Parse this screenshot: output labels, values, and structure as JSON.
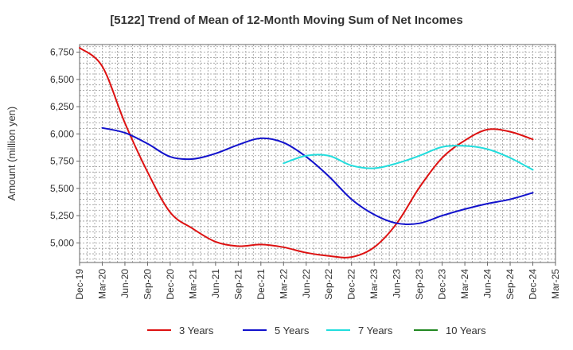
{
  "chart_data": {
    "type": "line",
    "title": "[5122]  Trend of Mean of 12-Month Moving Sum of Net Incomes",
    "xlabel": "",
    "ylabel": "Amount (million yen)",
    "x_start": "2019-12",
    "x_end": "2025-03",
    "x_ticks": [
      "Dec-19",
      "Mar-20",
      "Jun-20",
      "Sep-20",
      "Dec-20",
      "Mar-21",
      "Jun-21",
      "Sep-21",
      "Dec-21",
      "Mar-22",
      "Jun-22",
      "Sep-22",
      "Dec-22",
      "Mar-23",
      "Jun-23",
      "Sep-23",
      "Dec-23",
      "Mar-24",
      "Jun-24",
      "Sep-24",
      "Dec-24",
      "Mar-25"
    ],
    "ylim": [
      4820,
      6820
    ],
    "y_ticks": [
      5000,
      5250,
      5500,
      5750,
      6000,
      6250,
      6500,
      6750
    ],
    "y_tick_labels": [
      "5,000",
      "5,250",
      "5,500",
      "5,750",
      "6,000",
      "6,250",
      "6,500",
      "6,750"
    ],
    "grid": true,
    "legend_position": "bottom",
    "series": [
      {
        "name": "3 Years",
        "color": "#dd1111",
        "points": [
          [
            "2019-12",
            6790
          ],
          [
            "2020-03",
            6620
          ],
          [
            "2020-06",
            6100
          ],
          [
            "2020-09",
            5650
          ],
          [
            "2020-12",
            5280
          ],
          [
            "2021-03",
            5130
          ],
          [
            "2021-06",
            5010
          ],
          [
            "2021-09",
            4970
          ],
          [
            "2021-12",
            4985
          ],
          [
            "2022-03",
            4960
          ],
          [
            "2022-06",
            4910
          ],
          [
            "2022-09",
            4880
          ],
          [
            "2022-12",
            4870
          ],
          [
            "2023-03",
            4960
          ],
          [
            "2023-06",
            5180
          ],
          [
            "2023-09",
            5510
          ],
          [
            "2023-12",
            5780
          ],
          [
            "2024-03",
            5940
          ],
          [
            "2024-06",
            6040
          ],
          [
            "2024-09",
            6020
          ],
          [
            "2024-12",
            5950
          ]
        ]
      },
      {
        "name": "5 Years",
        "color": "#1111cc",
        "points": [
          [
            "2020-03",
            6055
          ],
          [
            "2020-06",
            6010
          ],
          [
            "2020-09",
            5910
          ],
          [
            "2020-12",
            5790
          ],
          [
            "2021-03",
            5770
          ],
          [
            "2021-06",
            5820
          ],
          [
            "2021-09",
            5900
          ],
          [
            "2021-12",
            5960
          ],
          [
            "2022-03",
            5920
          ],
          [
            "2022-06",
            5790
          ],
          [
            "2022-09",
            5610
          ],
          [
            "2022-12",
            5400
          ],
          [
            "2023-03",
            5260
          ],
          [
            "2023-06",
            5180
          ],
          [
            "2023-09",
            5180
          ],
          [
            "2023-12",
            5250
          ],
          [
            "2024-03",
            5310
          ],
          [
            "2024-06",
            5360
          ],
          [
            "2024-09",
            5400
          ],
          [
            "2024-12",
            5460
          ]
        ]
      },
      {
        "name": "7 Years",
        "color": "#22dddd",
        "points": [
          [
            "2022-03",
            5730
          ],
          [
            "2022-06",
            5800
          ],
          [
            "2022-09",
            5800
          ],
          [
            "2022-12",
            5710
          ],
          [
            "2023-03",
            5685
          ],
          [
            "2023-06",
            5730
          ],
          [
            "2023-09",
            5800
          ],
          [
            "2023-12",
            5880
          ],
          [
            "2024-03",
            5890
          ],
          [
            "2024-06",
            5860
          ],
          [
            "2024-09",
            5780
          ],
          [
            "2024-12",
            5670
          ]
        ]
      },
      {
        "name": "10 Years",
        "color": "#228822",
        "points": []
      }
    ]
  }
}
